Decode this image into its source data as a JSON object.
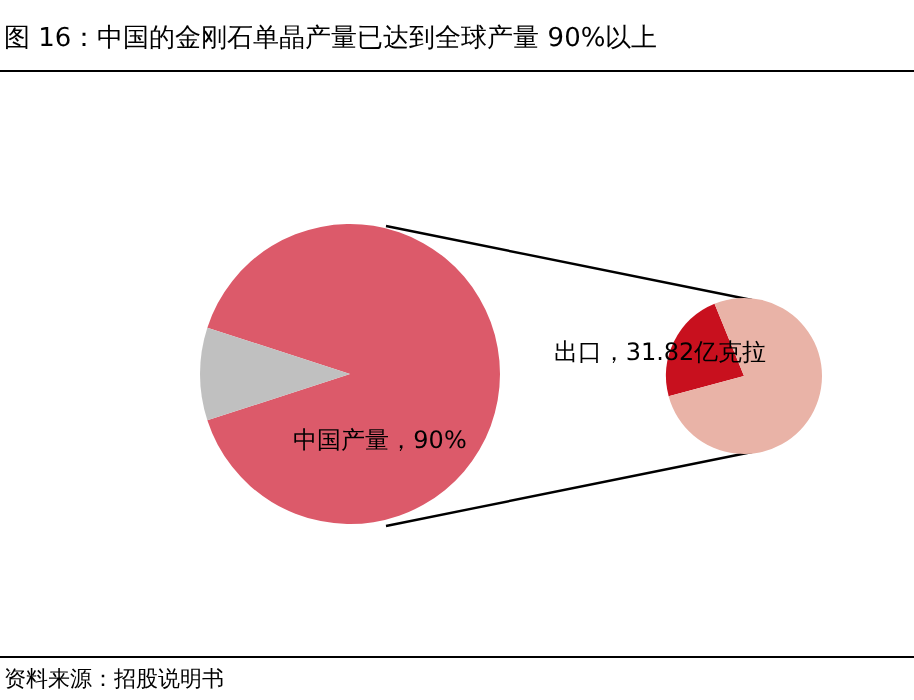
{
  "chart_data": [
    {
      "type": "pie",
      "title": "图 16：中国的金刚石单晶产量已达到全球产量 90%以上",
      "categories": [
        "中国产量，90%",
        null
      ],
      "values": [
        90,
        10
      ],
      "colors": [
        "#dc5a6a",
        "#c0c0c0"
      ],
      "annotations": [
        "资料来源：招股说明书"
      ]
    },
    {
      "type": "pie",
      "categories": [
        "出口，31.82亿克拉",
        null
      ],
      "values": [
        23,
        77
      ],
      "colors": [
        "#c8101e",
        "#e9b3a7"
      ]
    }
  ]
}
